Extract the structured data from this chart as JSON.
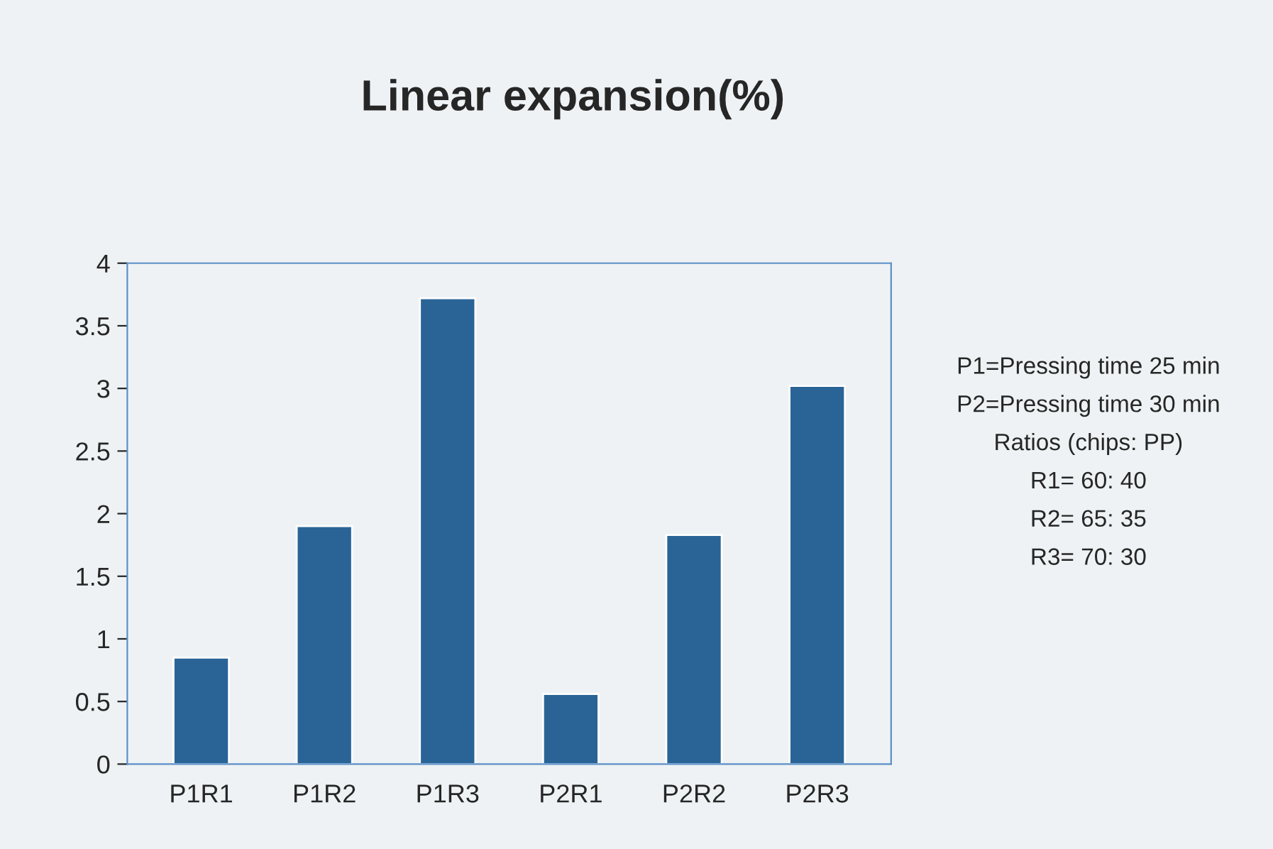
{
  "chart_data": {
    "type": "bar",
    "title": "Linear expansion(%)",
    "categories": [
      "P1R1",
      "P1R2",
      "P1R3",
      "P2R1",
      "P2R2",
      "P2R3"
    ],
    "values": [
      0.85,
      1.9,
      3.72,
      0.56,
      1.83,
      3.02
    ],
    "color": "#2a6496",
    "ylim": [
      0,
      4
    ],
    "yticks": [
      0,
      0.5,
      1,
      1.5,
      2,
      2.5,
      3,
      3.5,
      4
    ],
    "grid": false,
    "legend": false,
    "annotations": [
      "P1=Pressing time 25 min",
      "P2=Pressing time 30 min",
      "Ratios (chips: PP)",
      "R1= 60: 40",
      "R2= 65: 35",
      "R3= 70: 30"
    ]
  }
}
